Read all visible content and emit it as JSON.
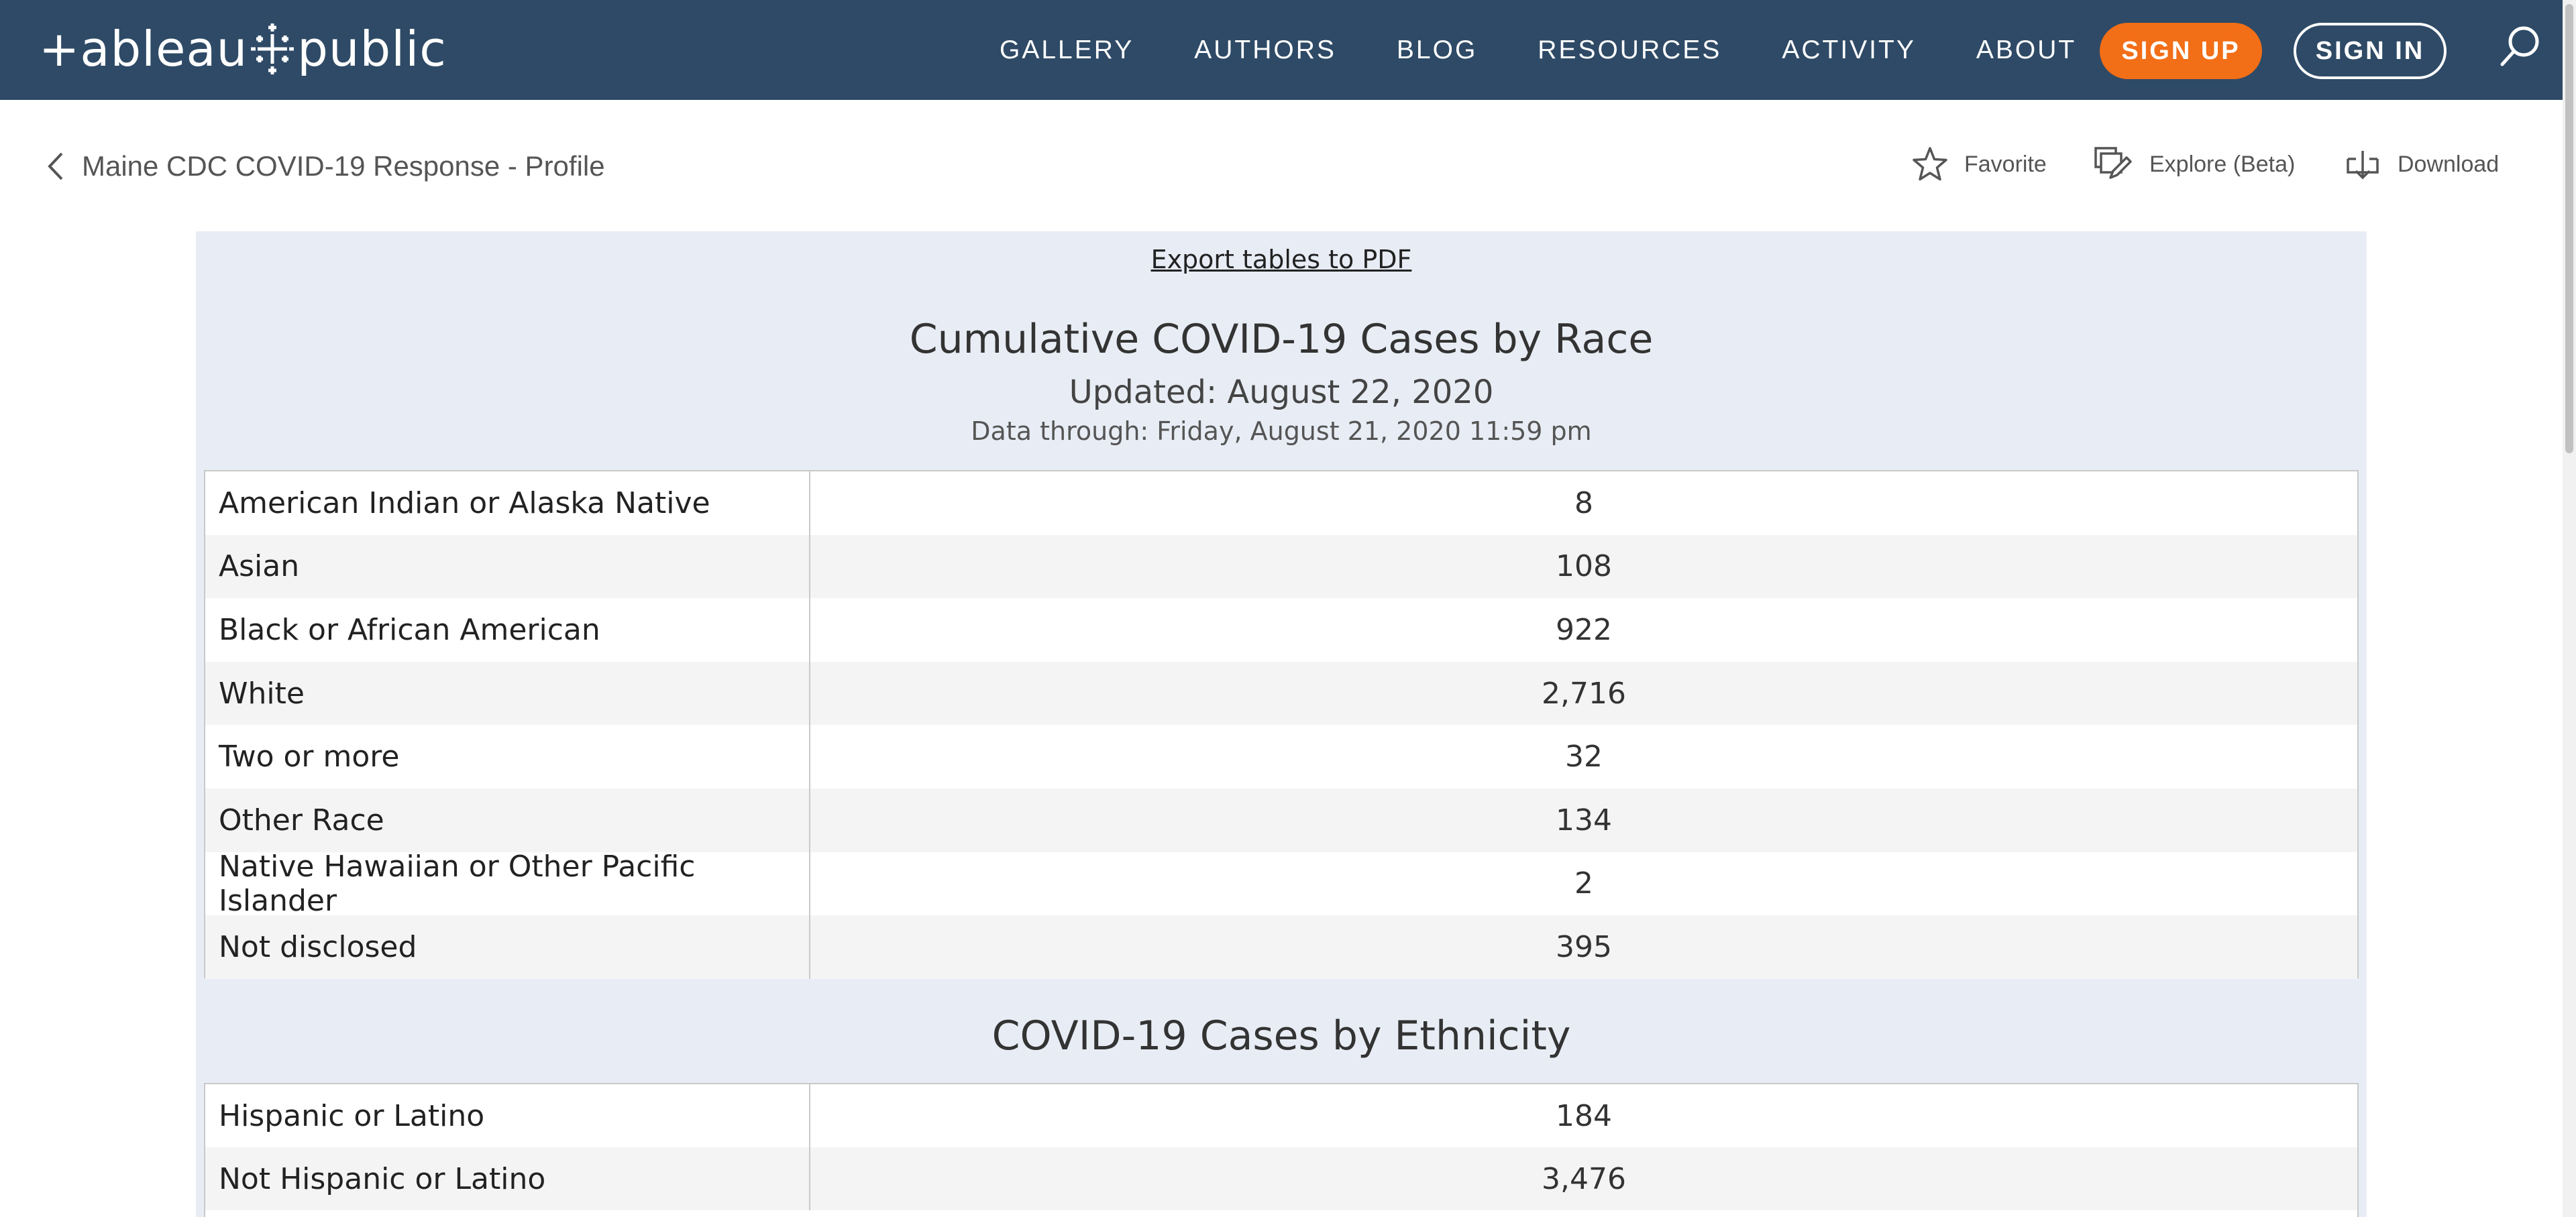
{
  "nav": {
    "logo_left": "+ableau",
    "logo_right": "public",
    "links": [
      "GALLERY",
      "AUTHORS",
      "BLOG",
      "RESOURCES",
      "ACTIVITY",
      "ABOUT"
    ],
    "signup": "SIGN UP",
    "signin": "SIGN IN",
    "colors": {
      "bar": "#2e4a66",
      "signup": "#f26e17"
    }
  },
  "subheader": {
    "back_label": "Maine CDC COVID-19 Response - Profile",
    "favorite": "Favorite",
    "explore": "Explore (Beta)",
    "download": "Download"
  },
  "viz": {
    "export_label": "Export tables to PDF",
    "race_title": "Cumulative COVID-19 Cases by Race",
    "updated": "Updated: August 22, 2020",
    "data_through": "Data through: Friday, August 21, 2020 11:59 pm",
    "race_rows": [
      {
        "label": "American Indian or Alaska Native",
        "value": "8"
      },
      {
        "label": "Asian",
        "value": "108"
      },
      {
        "label": "Black or African American",
        "value": "922"
      },
      {
        "label": "White",
        "value": "2,716"
      },
      {
        "label": "Two or more",
        "value": "32"
      },
      {
        "label": "Other Race",
        "value": "134"
      },
      {
        "label": "Native Hawaiian or Other Pacific Islander",
        "value": "2"
      },
      {
        "label": "Not disclosed",
        "value": "395"
      }
    ],
    "ethnicity_title": "COVID-19 Cases by Ethnicity",
    "ethnicity_rows": [
      {
        "label": "Hispanic or Latino",
        "value": "184"
      },
      {
        "label": "Not Hispanic or Latino",
        "value": "3,476"
      }
    ]
  }
}
